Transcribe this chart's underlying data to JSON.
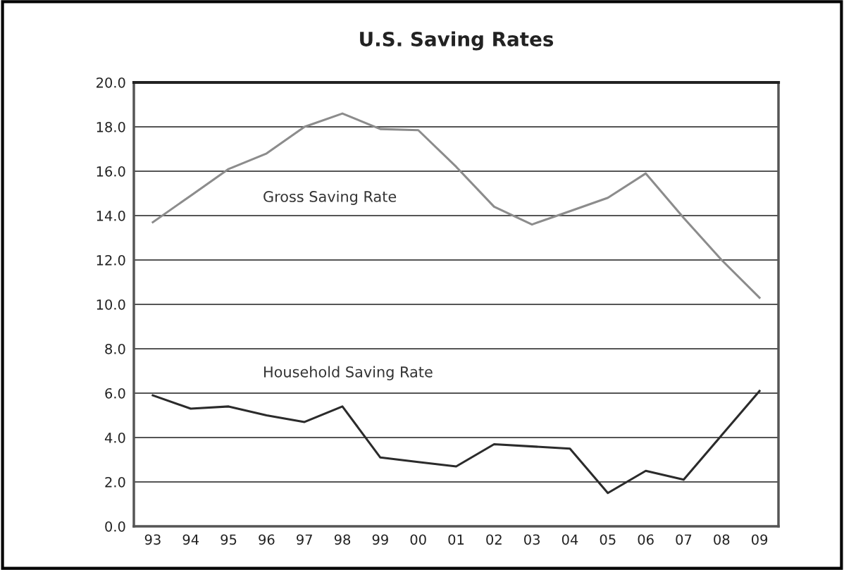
{
  "chart_data": {
    "type": "line",
    "title": "U.S. Saving Rates",
    "categories": [
      "93",
      "94",
      "95",
      "96",
      "97",
      "98",
      "99",
      "00",
      "01",
      "02",
      "03",
      "04",
      "05",
      "06",
      "07",
      "08",
      "09"
    ],
    "series": [
      {
        "name": "Gross Saving Rate",
        "color": "#8c8c8c",
        "values": [
          13.7,
          14.9,
          16.1,
          16.8,
          18.0,
          18.6,
          17.9,
          17.85,
          16.2,
          14.4,
          13.6,
          14.2,
          14.8,
          15.9,
          13.9,
          12.0,
          10.3
        ]
      },
      {
        "name": "Household Saving Rate",
        "color": "#2b2b2b",
        "values": [
          5.9,
          5.3,
          5.4,
          5.0,
          4.7,
          5.4,
          3.1,
          2.9,
          2.7,
          3.7,
          3.6,
          3.5,
          1.5,
          2.5,
          2.1,
          4.1,
          6.1
        ]
      }
    ],
    "ylim": [
      0,
      20
    ],
    "yticks": [
      {
        "value": 0,
        "label": "0.0"
      },
      {
        "value": 2,
        "label": "2.0"
      },
      {
        "value": 4,
        "label": "4.0"
      },
      {
        "value": 6,
        "label": "6.0"
      },
      {
        "value": 8,
        "label": "8.0"
      },
      {
        "value": 10,
        "label": "10.0"
      },
      {
        "value": 12,
        "label": "12.0"
      },
      {
        "value": 14,
        "label": "14.0"
      },
      {
        "value": 16,
        "label": "16.0"
      },
      {
        "value": 18,
        "label": "18.0"
      },
      {
        "value": 20,
        "label": "20.0"
      }
    ],
    "grid": "y",
    "legend": false,
    "marker": "none",
    "line_style": "solid"
  }
}
